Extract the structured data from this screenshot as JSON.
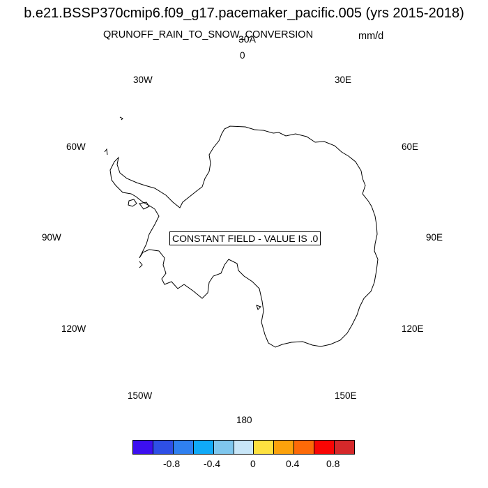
{
  "title": "b.e21.BSSP370cmip6.f09_g17.pacemaker_pacific.005 (yrs 2015-2018)",
  "subtitle": "QRUNOFF_RAIN_TO_SNOW_CONVERSION",
  "region_label": "30A",
  "units": "mm/d",
  "notice": "CONSTANT FIELD - VALUE IS .0",
  "longitude_labels": {
    "lon_0": "0",
    "lon_30e": "30E",
    "lon_60e": "60E",
    "lon_90e": "90E",
    "lon_120e": "120E",
    "lon_150e": "150E",
    "lon_180": "180",
    "lon_150w": "150W",
    "lon_120w": "120W",
    "lon_90w": "90W",
    "lon_60w": "60W",
    "lon_30w": "30W"
  },
  "colorbar": {
    "colors": [
      "#3c0ff0",
      "#2e4fe6",
      "#2f80f0",
      "#10aaf8",
      "#7fc7ee",
      "#c8e6f8",
      "#fde140",
      "#fca20c",
      "#fd6a08",
      "#f90504",
      "#d6282a"
    ],
    "tick_labels": [
      "-0.8",
      "-0.4",
      "0",
      "0.4",
      "0.8"
    ],
    "tick_values": [
      -0.8,
      -0.4,
      0,
      0.4,
      0.8
    ]
  }
}
